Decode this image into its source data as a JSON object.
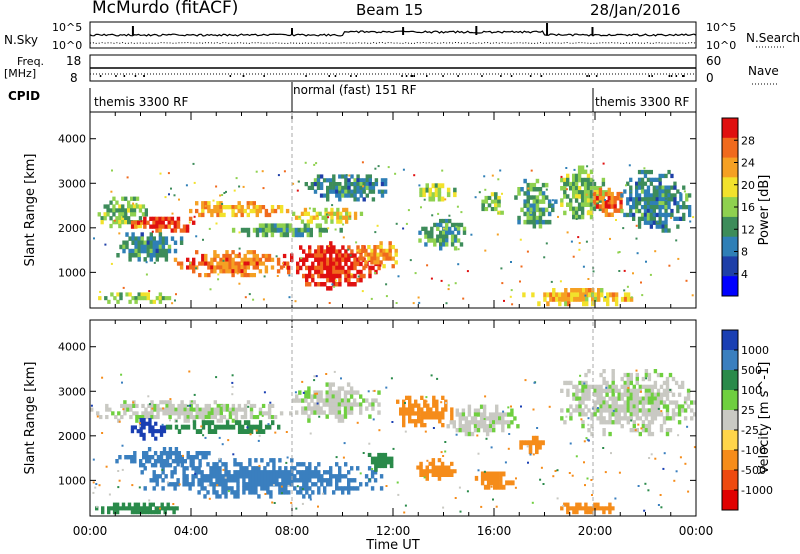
{
  "header": {
    "station": "McMurdo (fitACF)",
    "beam": "Beam 15",
    "date": "28/Jan/2016"
  },
  "panels": {
    "nsky": {
      "label": "N.Sky",
      "ticks_left": [
        "10^5",
        "10^0"
      ],
      "ticks_right": [
        "10^5",
        "10^0"
      ],
      "right_label": "N.Search"
    },
    "freq": {
      "label": "Freq.",
      "unit": "[MHz]",
      "ticks_left": [
        "18",
        "8"
      ],
      "ticks_right": [
        "60",
        "0"
      ],
      "right_label": "Nave"
    },
    "cpid": {
      "label": "CPID",
      "segments": [
        {
          "text": "themis 3300 RF",
          "start_h": 0.0,
          "end_h": 8.0
        },
        {
          "text": "normal (fast) 151 RF",
          "start_h": 8.0,
          "end_h": 20.0
        },
        {
          "text": "themis 3300 RF",
          "start_h": 20.0,
          "end_h": 24.0
        }
      ]
    }
  },
  "colors": {
    "power": [
      "#0000ff",
      "#1e3fa8",
      "#2f7fb6",
      "#3d8c5a",
      "#8fd14f",
      "#f2e22c",
      "#f5a023",
      "#f06a1d",
      "#e01010"
    ],
    "velocity": [
      "#1a3fb3",
      "#3a7fbf",
      "#2a8a4a",
      "#6fcf3f",
      "#c9c9c3",
      "#ffd54a",
      "#f58c1a",
      "#ee4a10",
      "#e00000"
    ]
  },
  "chart_data": [
    {
      "type": "heatmap",
      "title": "Power",
      "xlabel": "Time UT",
      "ylabel": "Slant Range [km]",
      "xlim": [
        0,
        24
      ],
      "ylim": [
        200,
        4600
      ],
      "x_ticks": [
        "00:00",
        "04:00",
        "08:00",
        "12:00",
        "16:00",
        "20:00",
        "00:00"
      ],
      "y_ticks": [
        1000,
        2000,
        3000,
        4000
      ],
      "colorbar": {
        "label": "Power [dB]",
        "ticks": [
          "28",
          "24",
          "20",
          "16",
          "12",
          "8",
          "4"
        ],
        "range": [
          0,
          30
        ]
      },
      "regions": [
        {
          "t0": 0.3,
          "t1": 2.4,
          "r0": 2000,
          "r1": 2700,
          "value": 14
        },
        {
          "t0": 1.5,
          "t1": 4.4,
          "r0": 1900,
          "r1": 2250,
          "value": 26
        },
        {
          "t0": 3.8,
          "t1": 8.0,
          "r0": 2250,
          "r1": 2600,
          "value": 22
        },
        {
          "t0": 8.0,
          "t1": 10.8,
          "r0": 2100,
          "r1": 2450,
          "value": 18
        },
        {
          "t0": 0.8,
          "t1": 3.8,
          "r0": 1250,
          "r1": 1900,
          "value": 10
        },
        {
          "t0": 3.2,
          "t1": 8.0,
          "r0": 900,
          "r1": 1500,
          "value": 24
        },
        {
          "t0": 7.8,
          "t1": 11.5,
          "r0": 600,
          "r1": 1700,
          "value": 28
        },
        {
          "t0": 10.5,
          "t1": 12.3,
          "r0": 1100,
          "r1": 1700,
          "value": 22
        },
        {
          "t0": 0.2,
          "t1": 3.2,
          "r0": 300,
          "r1": 550,
          "value": 16
        },
        {
          "t0": 5.5,
          "t1": 10.0,
          "r0": 1800,
          "r1": 2100,
          "value": 12
        },
        {
          "t0": 8.5,
          "t1": 12.0,
          "r0": 2600,
          "r1": 3200,
          "value": 10
        },
        {
          "t0": 12.8,
          "t1": 14.5,
          "r0": 2600,
          "r1": 3000,
          "value": 16
        },
        {
          "t0": 13.0,
          "t1": 15.0,
          "r0": 1500,
          "r1": 2200,
          "value": 12
        },
        {
          "t0": 15.5,
          "t1": 16.5,
          "r0": 2300,
          "r1": 2800,
          "value": 14
        },
        {
          "t0": 16.8,
          "t1": 18.5,
          "r0": 1900,
          "r1": 3100,
          "value": 12
        },
        {
          "t0": 18.5,
          "t1": 20.5,
          "r0": 2200,
          "r1": 3400,
          "value": 14
        },
        {
          "t0": 19.8,
          "t1": 21.2,
          "r0": 2250,
          "r1": 2900,
          "value": 24
        },
        {
          "t0": 21.0,
          "t1": 23.8,
          "r0": 1900,
          "r1": 3300,
          "value": 10
        },
        {
          "t0": 17.0,
          "t1": 21.5,
          "r0": 250,
          "r1": 650,
          "value": 20
        }
      ]
    },
    {
      "type": "heatmap",
      "title": "Velocity",
      "xlabel": "Time UT",
      "ylabel": "Slant Range [km]",
      "xlim": [
        0,
        24
      ],
      "ylim": [
        200,
        4600
      ],
      "x_ticks": [
        "00:00",
        "04:00",
        "08:00",
        "12:00",
        "16:00",
        "20:00",
        "00:00"
      ],
      "y_ticks": [
        1000,
        2000,
        3000,
        4000
      ],
      "colorbar": {
        "label": "Velocity [m s^-1]",
        "ticks": [
          "1000",
          "500",
          "100",
          "25",
          "-25",
          "-100",
          "-500",
          "-1000"
        ],
        "range": [
          -1000,
          1000
        ]
      },
      "regions": [
        {
          "t0": 0.0,
          "t1": 8.0,
          "r0": 2300,
          "r1": 2800,
          "value": 0
        },
        {
          "t0": 1.5,
          "t1": 3.0,
          "r0": 1900,
          "r1": 2400,
          "value": 700
        },
        {
          "t0": 3.0,
          "t1": 8.0,
          "r0": 2050,
          "r1": 2350,
          "value": 80
        },
        {
          "t0": 1.0,
          "t1": 5.0,
          "r0": 1300,
          "r1": 1750,
          "value": 200
        },
        {
          "t0": 2.0,
          "t1": 11.6,
          "r0": 600,
          "r1": 1500,
          "value": 200
        },
        {
          "t0": 11.0,
          "t1": 12.0,
          "r0": 1200,
          "r1": 1700,
          "value": 60
        },
        {
          "t0": 8.0,
          "t1": 11.5,
          "r0": 2300,
          "r1": 3200,
          "value": 0
        },
        {
          "t0": 12.0,
          "t1": 14.5,
          "r0": 2200,
          "r1": 2900,
          "value": -200
        },
        {
          "t0": 12.8,
          "t1": 14.5,
          "r0": 1000,
          "r1": 1500,
          "value": -300
        },
        {
          "t0": 15.0,
          "t1": 16.8,
          "r0": 800,
          "r1": 1200,
          "value": -200
        },
        {
          "t0": 17.0,
          "t1": 18.0,
          "r0": 1600,
          "r1": 2000,
          "value": -150
        },
        {
          "t0": 18.5,
          "t1": 24.0,
          "r0": 2000,
          "r1": 3500,
          "value": 0
        },
        {
          "t0": 14.0,
          "t1": 17.0,
          "r0": 2000,
          "r1": 2700,
          "value": 0
        },
        {
          "t0": 0.2,
          "t1": 3.5,
          "r0": 250,
          "r1": 500,
          "value": 60
        },
        {
          "t0": 18.5,
          "t1": 21.0,
          "r0": 250,
          "r1": 500,
          "value": -200
        }
      ]
    }
  ]
}
